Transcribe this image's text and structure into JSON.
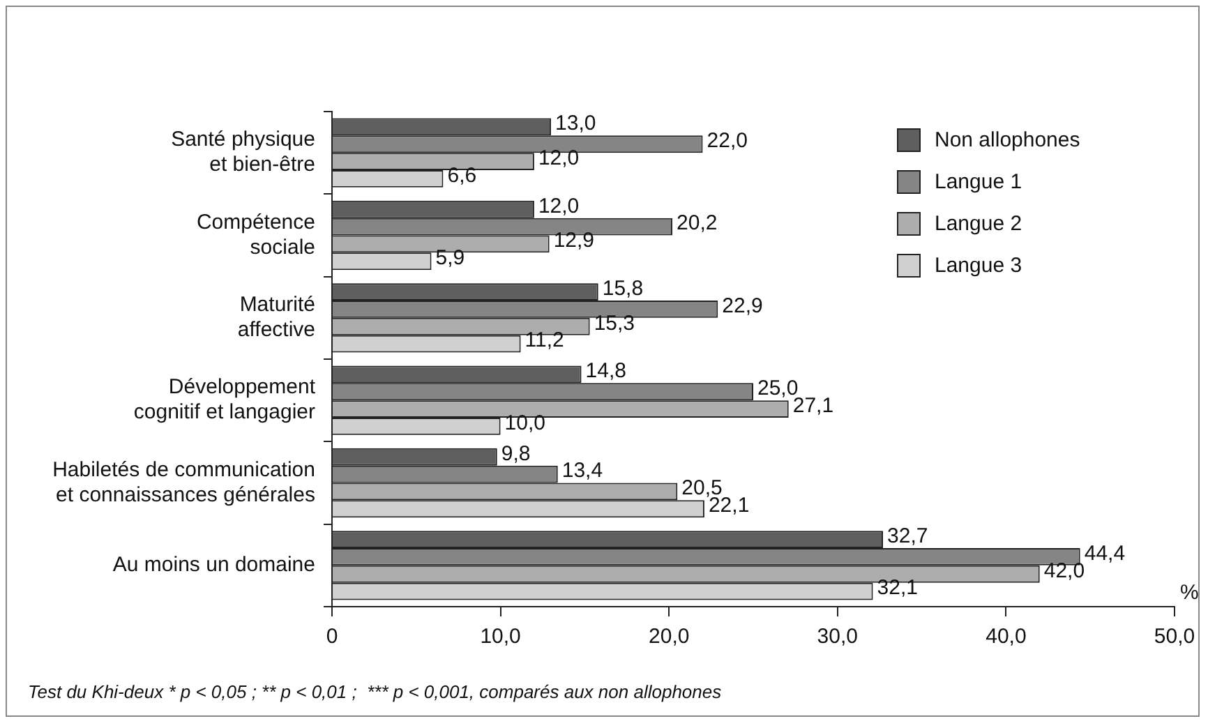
{
  "chart_data": {
    "type": "bar",
    "orientation": "horizontal",
    "xlabel": "%",
    "categories": [
      "Santé physique\net bien-être",
      "Compétence\nsociale",
      "Maturité\naffective",
      "Développement\ncognitif et langagier",
      "Habiletés de communication\net connaissances générales",
      "Au moins un domaine"
    ],
    "series": [
      {
        "name": "Non allophones",
        "color": "#5f5f5f",
        "values": [
          13.0,
          12.0,
          15.8,
          14.8,
          9.8,
          32.7
        ],
        "value_labels": [
          "13,0",
          "12,0",
          "15,8",
          "14,8",
          "9,8",
          "32,7"
        ]
      },
      {
        "name": "Langue 1",
        "color": "#858585",
        "values": [
          22.0,
          20.2,
          22.9,
          25.0,
          13.4,
          44.4
        ],
        "value_labels": [
          "22,0",
          "20,2",
          "22,9",
          "25,0",
          "13,4",
          "44,4"
        ]
      },
      {
        "name": "Langue 2",
        "color": "#adadad",
        "values": [
          12.0,
          12.9,
          15.3,
          27.1,
          20.5,
          42.0
        ],
        "value_labels": [
          "12,0",
          "12,9",
          "15,3",
          "27,1",
          "20,5",
          "42,0"
        ]
      },
      {
        "name": "Langue 3",
        "color": "#d0d0d0",
        "values": [
          6.6,
          5.9,
          11.2,
          10.0,
          22.1,
          32.1
        ],
        "value_labels": [
          "6,6",
          "5,9",
          "11,2",
          "10,0",
          "22,1",
          "32,1"
        ]
      }
    ],
    "xlim": [
      0,
      50
    ],
    "xticks": [
      {
        "value": 0,
        "label": "0"
      },
      {
        "value": 10,
        "label": "10,0"
      },
      {
        "value": 20,
        "label": "20,0"
      },
      {
        "value": 30,
        "label": "30,0"
      },
      {
        "value": 40,
        "label": "40,0"
      },
      {
        "value": 50,
        "label": "50,0"
      }
    ],
    "grid": false,
    "legend": "top right",
    "annotations": [
      "Test du Khi-deux * p < 0,05 ; ** p < 0,01 ;  *** p < 0,001, comparés aux non allophones"
    ]
  }
}
